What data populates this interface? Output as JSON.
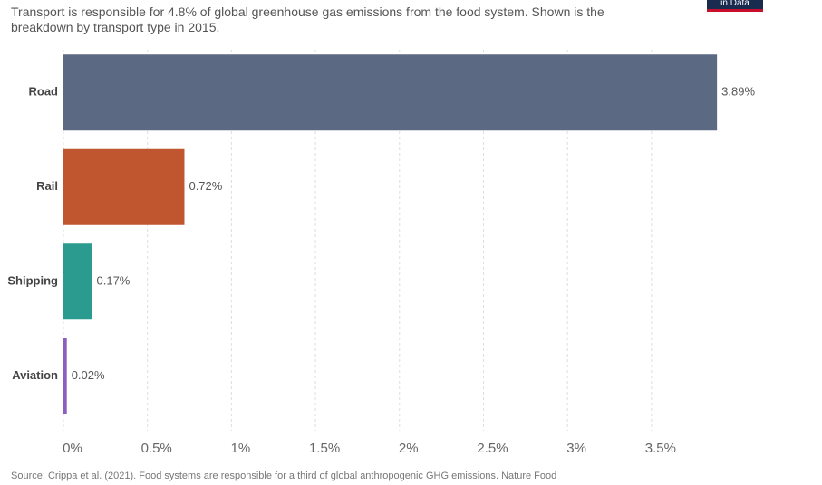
{
  "subtitle": "Transport is responsible for 4.8% of global greenhouse gas emissions from the food system. Shown is the breakdown by transport type in 2015.",
  "logo_text": "in Data",
  "source": "Source: Crippa et al. (2021). Food systems are responsible for a third of global anthropogenic GHG emissions. Nature Food",
  "chart_data": {
    "type": "hbar",
    "categories": [
      "Road",
      "Rail",
      "Shipping",
      "Aviation"
    ],
    "values": [
      3.89,
      0.72,
      0.17,
      0.02
    ],
    "value_labels": [
      "3.89%",
      "0.72%",
      "0.17%",
      "0.02%"
    ],
    "colors": [
      "#5b6a82",
      "#c0562f",
      "#2a9b8e",
      "#8b5fbf"
    ],
    "xlim": [
      0,
      3.9
    ],
    "xticks": [
      {
        "value": 0,
        "label": "0%"
      },
      {
        "value": 0.5,
        "label": "0.5%"
      },
      {
        "value": 1,
        "label": "1%"
      },
      {
        "value": 1.5,
        "label": "1.5%"
      },
      {
        "value": 2,
        "label": "2%"
      },
      {
        "value": 2.5,
        "label": "2.5%"
      },
      {
        "value": 3,
        "label": "3%"
      },
      {
        "value": 3.5,
        "label": "3.5%"
      }
    ],
    "grid": true
  }
}
